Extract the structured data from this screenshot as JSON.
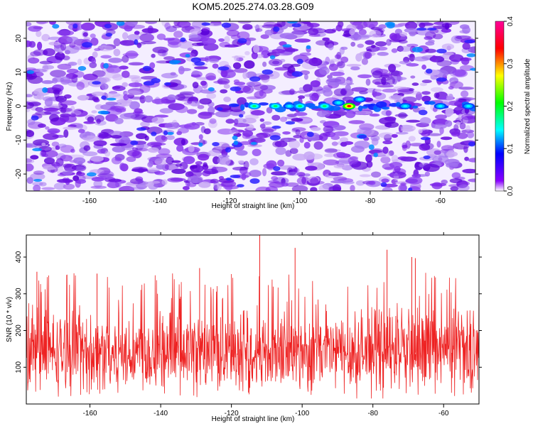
{
  "figure": {
    "title": "KOM5.2025.274.03.28.G09"
  },
  "chart_data": [
    {
      "type": "heatmap",
      "title": "",
      "xlabel": "Height of straight line (km)",
      "ylabel": "Frequency (Hz)",
      "xlim": [
        -178,
        -50
      ],
      "ylim": [
        -25,
        25
      ],
      "xticks": [
        -160,
        -140,
        -120,
        -100,
        -80,
        -60
      ],
      "yticks": [
        -20,
        -10,
        0,
        10,
        20
      ],
      "colorbar": {
        "label": "Normalized spectral amplitude",
        "range": [
          0,
          0.4
        ],
        "ticks": [
          "0.0",
          "0.1",
          "0.2",
          "0.3",
          "0.4"
        ],
        "colormap": [
          "#ffffff",
          "#8800ff",
          "#0000ff",
          "#00ffff",
          "#00ff00",
          "#ffff00",
          "#ff0000",
          "#ff00aa"
        ]
      },
      "features": [
        {
          "x": -113,
          "y": 0,
          "value": 0.18
        },
        {
          "x": -107,
          "y": 0,
          "value": 0.19
        },
        {
          "x": -103,
          "y": 0,
          "value": 0.17
        },
        {
          "x": -100,
          "y": 0,
          "value": 0.2
        },
        {
          "x": -93,
          "y": 0,
          "value": 0.2
        },
        {
          "x": -89,
          "y": 1,
          "value": 0.16
        },
        {
          "x": -86,
          "y": 0,
          "value": 0.3
        },
        {
          "x": -83,
          "y": 2,
          "value": 0.12
        },
        {
          "x": -70,
          "y": 0,
          "value": 0.1
        },
        {
          "x": -60,
          "y": 0,
          "value": 0.1
        },
        {
          "x": -52,
          "y": 0,
          "value": 0.13
        }
      ]
    },
    {
      "type": "line",
      "title": "",
      "xlabel": "Height of straight line (km)",
      "ylabel": "SNR (10 * v/v)",
      "xlim": [
        -178,
        -50
      ],
      "ylim": [
        0,
        460
      ],
      "xticks": [
        -160,
        -140,
        -120,
        -100,
        -80,
        -60
      ],
      "yticks": [
        100,
        200,
        300,
        400
      ],
      "series": [
        {
          "color": "#ee2222",
          "baseline": 140,
          "spread": 110,
          "peaks": [
            {
              "x": -112,
              "y": 460
            },
            {
              "x": -102,
              "y": 425
            },
            {
              "x": -76,
              "y": 420
            },
            {
              "x": -69,
              "y": 400
            },
            {
              "x": -68,
              "y": 397
            },
            {
              "x": -129,
              "y": 370
            },
            {
              "x": -175,
              "y": 360
            },
            {
              "x": -158,
              "y": 355
            }
          ]
        }
      ]
    }
  ]
}
